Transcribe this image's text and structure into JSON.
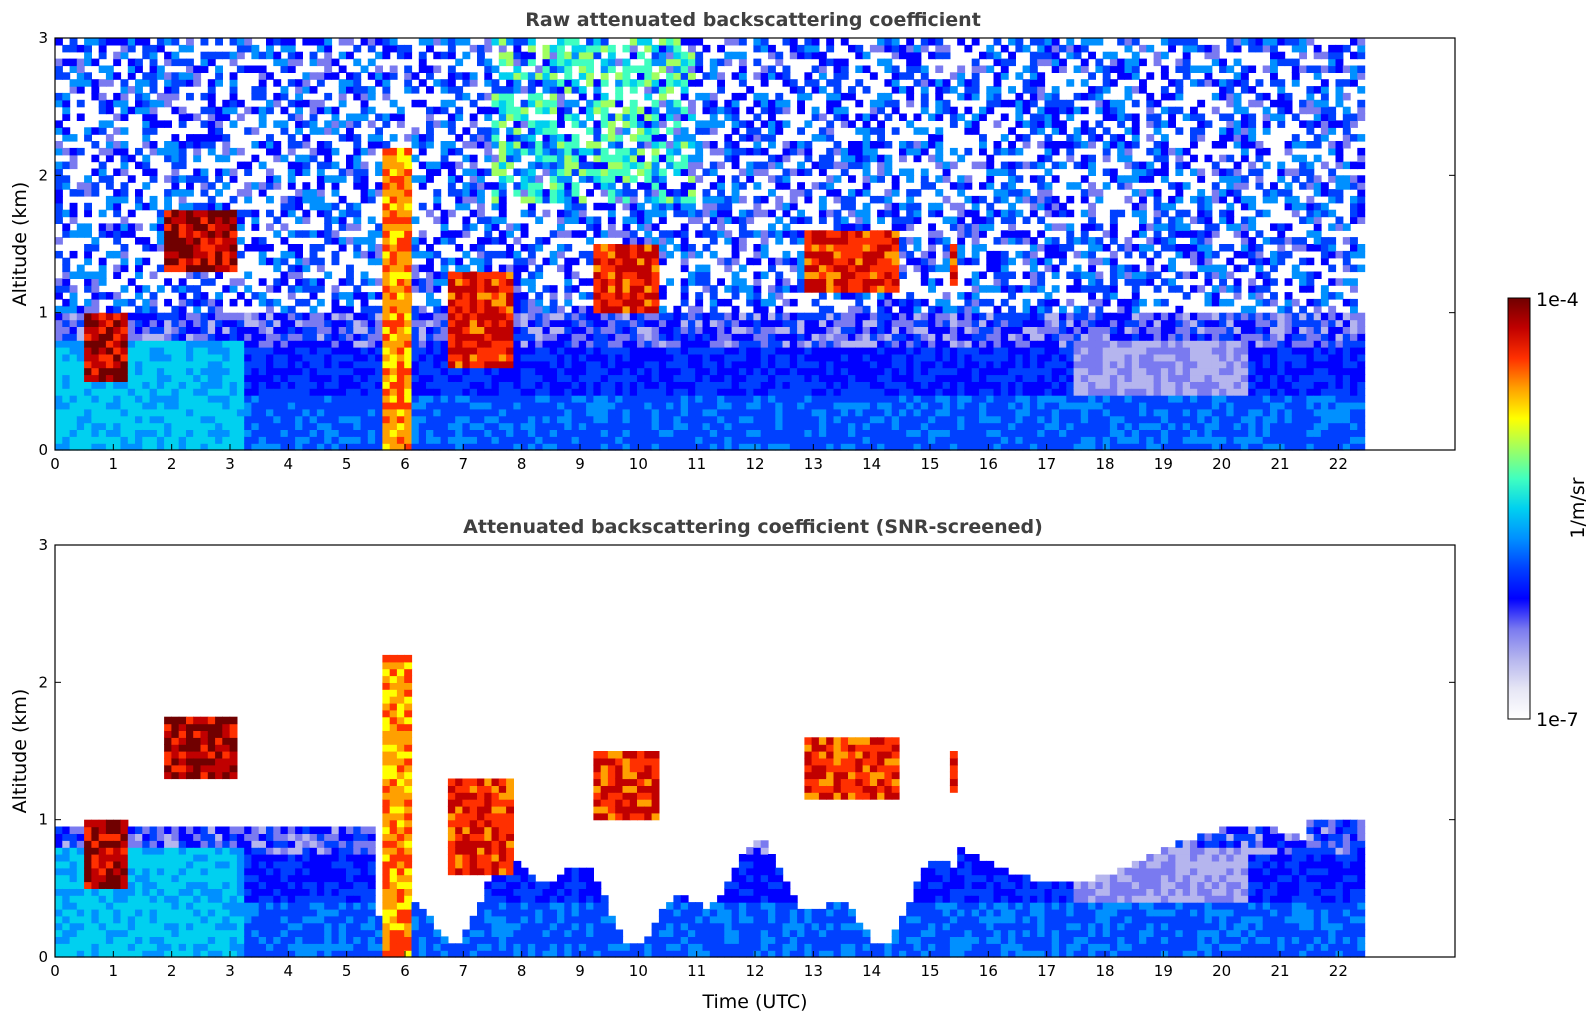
{
  "chart_data": {
    "type": "heatmap",
    "colormap": [
      "#ffffff",
      "#e6e6f5",
      "#b5b5ee",
      "#7a7af0",
      "#0000ff",
      "#0040ff",
      "#0090ff",
      "#00d0f0",
      "#40ffc0",
      "#a0ff60",
      "#ffff00",
      "#ffa000",
      "#ff3000",
      "#c00000",
      "#700000"
    ],
    "colorbar": {
      "min_label": "1e-7",
      "max_label": "1e-4",
      "label": "1/m/sr",
      "scale": "log",
      "range": [
        1e-07,
        0.0001
      ]
    },
    "panels": [
      {
        "title": "Raw attenuated backscattering coefficient",
        "ylabel": "Altitude (km)",
        "xlabel": "",
        "xlim": [
          0,
          24
        ],
        "ylim": [
          0,
          3
        ],
        "xticks": [
          "0",
          "1",
          "2",
          "3",
          "4",
          "5",
          "6",
          "7",
          "8",
          "9",
          "10",
          "11",
          "12",
          "13",
          "14",
          "15",
          "16",
          "17",
          "18",
          "19",
          "20",
          "21",
          "22"
        ],
        "yticks": [
          "0",
          "1",
          "2",
          "3"
        ],
        "data_end_time": 22.45,
        "screened": false
      },
      {
        "title": "Attenuated backscattering coefficient (SNR-screened)",
        "ylabel": "Altitude (km)",
        "xlabel": "Time (UTC)",
        "xlim": [
          0,
          24
        ],
        "ylim": [
          0,
          3
        ],
        "xticks": [
          "0",
          "1",
          "2",
          "3",
          "4",
          "5",
          "6",
          "7",
          "8",
          "9",
          "10",
          "11",
          "12",
          "13",
          "14",
          "15",
          "16",
          "17",
          "18",
          "19",
          "20",
          "21",
          "22"
        ],
        "yticks": [
          "0",
          "1",
          "2",
          "3"
        ],
        "data_end_time": 22.45,
        "screened": true
      }
    ],
    "features": [
      {
        "name": "low-cloud",
        "t0": 0.5,
        "t1": 1.3,
        "z0": 0.5,
        "z1": 1.0,
        "level": 13
      },
      {
        "name": "mid-cloud",
        "t0": 1.9,
        "t1": 3.1,
        "z0": 1.3,
        "z1": 1.75,
        "level": 13
      },
      {
        "name": "precip-column",
        "t0": 5.6,
        "t1": 6.1,
        "z0": 0.0,
        "z1": 2.2,
        "level": 11
      },
      {
        "name": "cloud-7h",
        "t0": 6.7,
        "t1": 7.8,
        "z0": 0.6,
        "z1": 1.3,
        "level": 12
      },
      {
        "name": "cloud-10h",
        "t0": 9.2,
        "t1": 10.3,
        "z0": 1.0,
        "z1": 1.5,
        "level": 12
      },
      {
        "name": "cloud-13h",
        "t0": 12.9,
        "t1": 14.5,
        "z0": 1.15,
        "z1": 1.6,
        "level": 12
      },
      {
        "name": "cloud-15h",
        "t0": 15.3,
        "t1": 15.5,
        "z0": 1.2,
        "z1": 1.5,
        "level": 12
      }
    ]
  }
}
